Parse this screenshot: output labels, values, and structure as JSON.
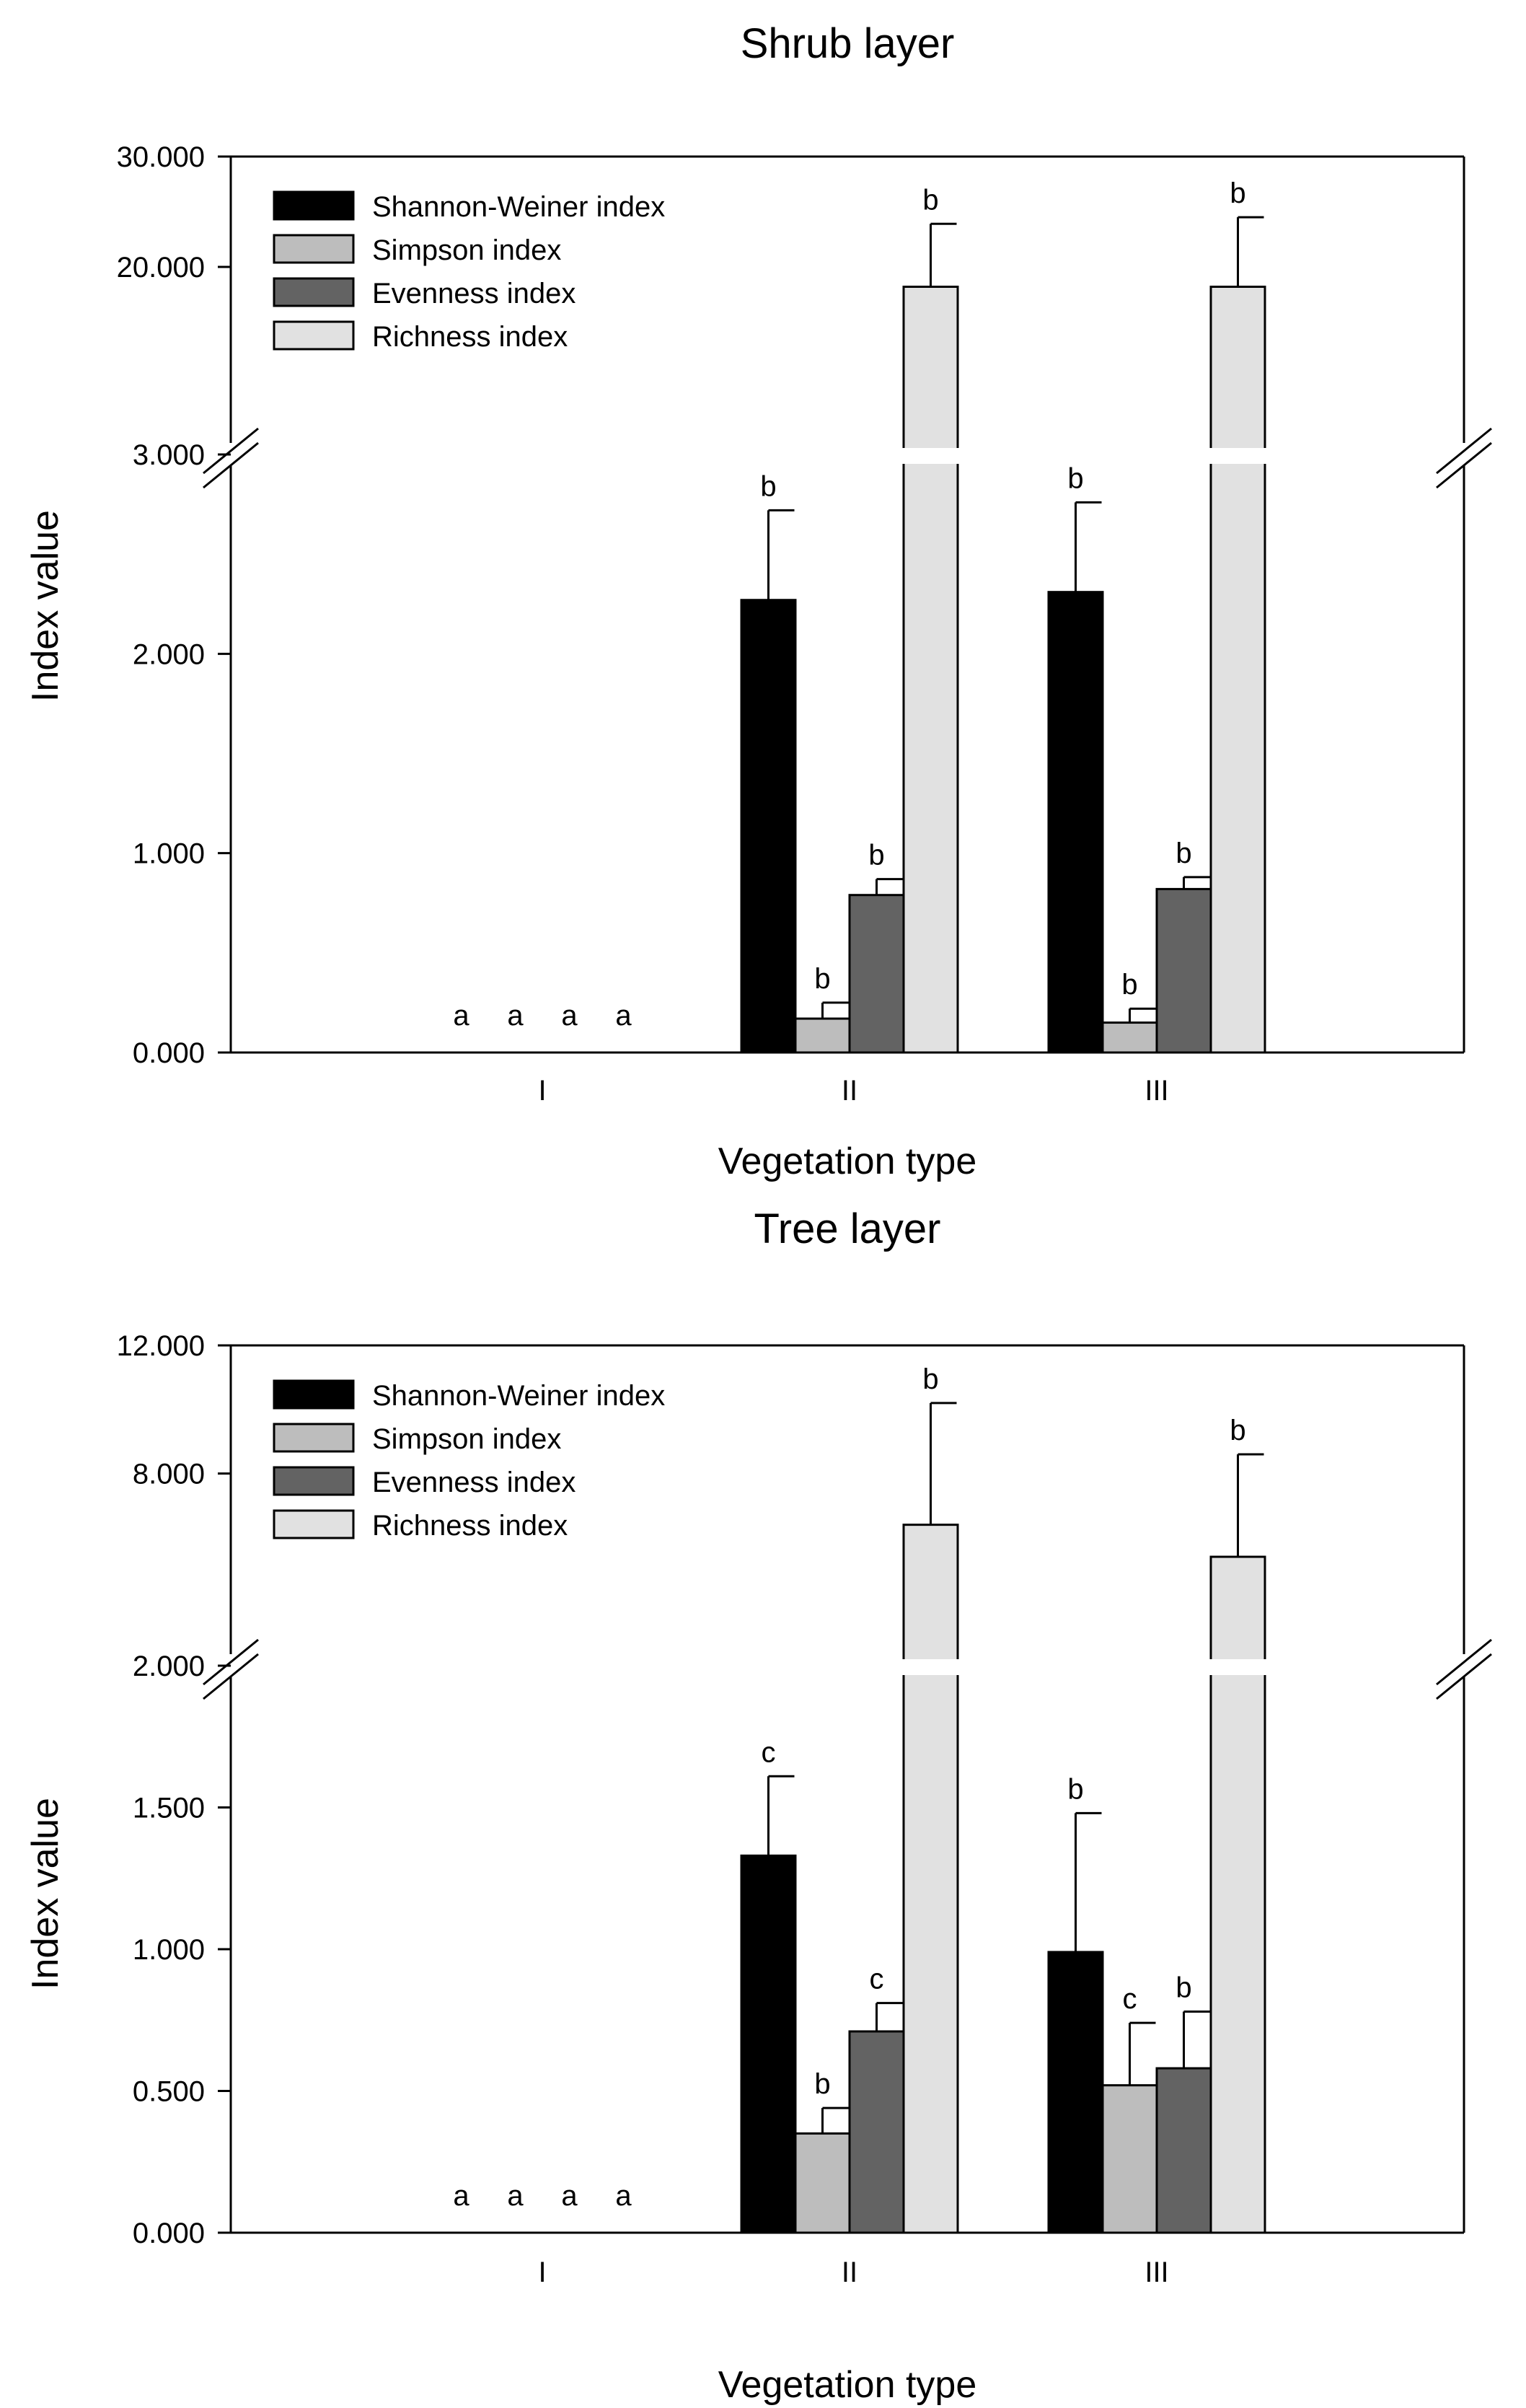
{
  "figure": {
    "description_free": true
  },
  "chart_data": [
    {
      "type": "bar",
      "title": "Shrub layer",
      "xlabel": "Vegetation type",
      "ylabel": "Index value",
      "categories": [
        "I",
        "II",
        "III"
      ],
      "broken_axis": {
        "lower": {
          "ylim": [
            0,
            3
          ],
          "ticks": [
            0,
            1,
            2,
            3
          ],
          "tick_labels": [
            "0.000",
            "1.000",
            "2.000",
            "3.000"
          ]
        },
        "upper": {
          "ylim": [
            3,
            30
          ],
          "ticks": [
            20,
            30
          ],
          "tick_labels": [
            "20.000",
            "30.000"
          ]
        }
      },
      "series": [
        {
          "name": "Shannon-Weiner index",
          "color": "#000000",
          "values": [
            0,
            2.27,
            2.31
          ],
          "errors": [
            0,
            0.45,
            0.45
          ],
          "letters": [
            "a",
            "b",
            "b"
          ]
        },
        {
          "name": "Simpson index",
          "color": "#bdbdbd",
          "values": [
            0,
            0.17,
            0.15
          ],
          "errors": [
            0,
            0.08,
            0.07
          ],
          "letters": [
            "a",
            "b",
            "b"
          ]
        },
        {
          "name": "Evenness index",
          "color": "#636363",
          "values": [
            0,
            0.79,
            0.82
          ],
          "errors": [
            0,
            0.08,
            0.06
          ],
          "letters": [
            "a",
            "b",
            "b"
          ]
        },
        {
          "name": "Richness index",
          "color": "#e1e1e1",
          "values": [
            0,
            18.2,
            18.2
          ],
          "errors": [
            0,
            5.7,
            6.3
          ],
          "letters": [
            "a",
            "b",
            "b"
          ]
        }
      ],
      "legend": "top-left"
    },
    {
      "type": "bar",
      "title": "Tree layer",
      "xlabel": "Vegetation type",
      "ylabel": "Index value",
      "categories": [
        "I",
        "II",
        "III"
      ],
      "broken_axis": {
        "lower": {
          "ylim": [
            0,
            2
          ],
          "ticks": [
            0,
            0.5,
            1,
            1.5,
            2
          ],
          "tick_labels": [
            "0.000",
            "0.500",
            "1.000",
            "1.500",
            "2.000"
          ]
        },
        "upper": {
          "ylim": [
            2,
            12
          ],
          "ticks": [
            8,
            12
          ],
          "tick_labels": [
            "8.000",
            "12.000"
          ]
        }
      },
      "series": [
        {
          "name": "Shannon-Weiner index",
          "color": "#000000",
          "values": [
            0,
            1.33,
            0.99
          ],
          "errors": [
            0,
            0.28,
            0.49
          ],
          "letters": [
            "a",
            "c",
            "b"
          ]
        },
        {
          "name": "Simpson index",
          "color": "#bdbdbd",
          "values": [
            0,
            0.35,
            0.52
          ],
          "errors": [
            0,
            0.09,
            0.22
          ],
          "letters": [
            "a",
            "b",
            "c"
          ]
        },
        {
          "name": "Evenness index",
          "color": "#636363",
          "values": [
            0,
            0.71,
            0.58
          ],
          "errors": [
            0,
            0.1,
            0.2
          ],
          "letters": [
            "a",
            "c",
            "b"
          ]
        },
        {
          "name": "Richness index",
          "color": "#e1e1e1",
          "values": [
            0,
            6.4,
            5.4
          ],
          "errors": [
            0,
            3.8,
            3.2
          ],
          "letters": [
            "a",
            "b",
            "b"
          ]
        }
      ],
      "legend": "top-left"
    }
  ]
}
